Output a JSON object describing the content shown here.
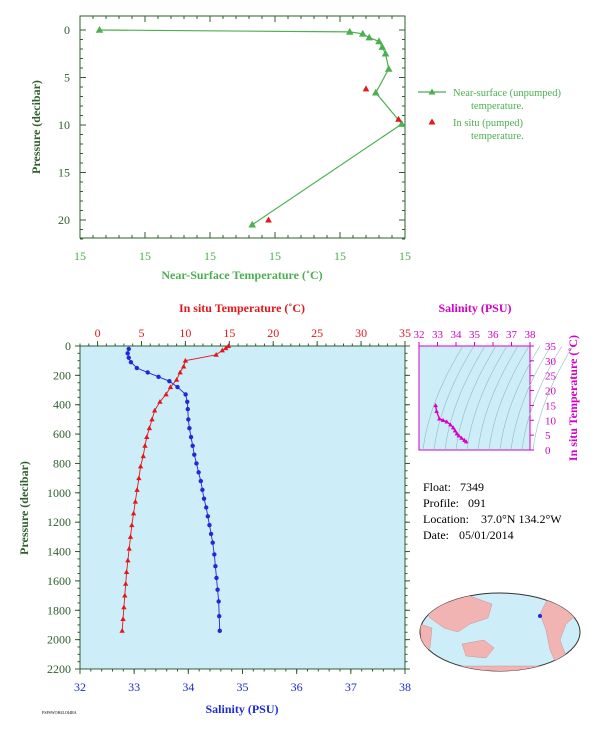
{
  "colors": {
    "green": "#4caf50",
    "axis_green": "#2f5e2f",
    "red": "#e3171b",
    "blue": "#1f2ad6",
    "magenta": "#d400c8",
    "plot_bg": "#cdeef8",
    "land": "#f2b3b3"
  },
  "meta": {
    "float_label": "Float:",
    "float_value": "7349",
    "profile_label": "Profile:",
    "profile_value": "091",
    "location_label": "Location:",
    "location_value": "37.0°N  134.2°W",
    "date_label": "Date:",
    "date_value": "05/01/2014",
    "footer_code": "FSPSWOH4LOI4RA"
  },
  "chart_data": [
    {
      "type": "line",
      "id": "near-surface",
      "xlabel": "Near-Surface Temperature (˚C)",
      "ylabel": "Pressure (decibar)",
      "x_tick_labels": [
        "15",
        "15",
        "15",
        "15",
        "15",
        "15"
      ],
      "y_ticks": [
        0,
        5,
        10,
        15,
        20
      ],
      "ylim": [
        0,
        22
      ],
      "y_inverted": true,
      "x_range_relative": [
        0,
        5
      ],
      "legend": {
        "placement": "right",
        "entries": [
          {
            "label_line1": "Near-surface (unpumped)",
            "label_line2": "temperature.",
            "color": "#4caf50",
            "marker": "line-triangle"
          },
          {
            "label_line1": "In situ (pumped)",
            "label_line2": "temperature.",
            "color": "#e3171b",
            "marker": "triangle"
          }
        ]
      },
      "series": [
        {
          "name": "Near-surface (unpumped) temperature.",
          "x_rel": [
            0.3,
            4.15,
            4.35,
            4.45,
            4.6,
            4.65,
            4.7,
            4.75,
            4.55,
            4.95,
            2.65
          ],
          "y": [
            0.0,
            0.2,
            0.4,
            0.8,
            1.2,
            1.8,
            2.5,
            4.1,
            6.6,
            9.9,
            20.5
          ]
        },
        {
          "name": "In situ (pumped) temperature.",
          "x_rel": [
            4.4,
            4.9,
            2.9
          ],
          "y": [
            6.2,
            9.4,
            20.0
          ]
        }
      ]
    },
    {
      "type": "line",
      "id": "profile",
      "ylabel": "Pressure (decibar)",
      "y_ticks": [
        0,
        200,
        400,
        600,
        800,
        1000,
        1200,
        1400,
        1600,
        1800,
        2000,
        2200
      ],
      "ylim": [
        0,
        2200
      ],
      "y_inverted": true,
      "top_axis": {
        "label": "In situ Temperature (˚C)",
        "ticks": [
          0,
          5,
          10,
          15,
          20,
          25,
          30,
          35
        ],
        "lim": [
          -2,
          35
        ]
      },
      "bottom_axis": {
        "label": "Salinity (PSU)",
        "ticks": [
          32,
          33,
          34,
          35,
          36,
          37,
          38
        ],
        "lim": [
          32,
          38
        ]
      },
      "series": [
        {
          "name": "In situ Temperature",
          "axis": "top",
          "x": [
            14.9,
            14.6,
            14.2,
            13.5,
            10.0,
            9.8,
            9.4,
            9.0,
            8.3,
            7.8,
            7.1,
            6.5,
            6.2,
            5.9,
            5.6,
            5.4,
            5.2,
            4.9,
            4.7,
            4.5,
            4.3,
            4.1,
            3.9,
            3.75,
            3.6,
            3.45,
            3.3,
            3.2,
            3.1,
            3.0,
            2.9,
            2.8
          ],
          "y": [
            0,
            15,
            30,
            60,
            100,
            140,
            180,
            230,
            280,
            330,
            380,
            440,
            500,
            560,
            620,
            680,
            750,
            820,
            900,
            980,
            1060,
            1140,
            1220,
            1300,
            1380,
            1460,
            1540,
            1620,
            1700,
            1780,
            1860,
            1940
          ]
        },
        {
          "name": "Salinity",
          "axis": "bottom",
          "x": [
            32.9,
            32.88,
            32.9,
            32.94,
            33.05,
            33.25,
            33.45,
            33.65,
            33.8,
            33.95,
            33.98,
            33.99,
            34.0,
            34.02,
            34.05,
            34.08,
            34.11,
            34.15,
            34.19,
            34.23,
            34.26,
            34.29,
            34.33,
            34.36,
            34.39,
            34.42,
            34.45,
            34.48,
            34.5,
            34.52,
            34.54,
            34.56,
            34.57,
            34.58
          ],
          "y": [
            20,
            50,
            80,
            110,
            150,
            180,
            210,
            240,
            280,
            330,
            380,
            430,
            500,
            560,
            620,
            680,
            740,
            800,
            860,
            920,
            980,
            1040,
            1100,
            1160,
            1220,
            1280,
            1340,
            1420,
            1500,
            1580,
            1660,
            1740,
            1840,
            1940
          ]
        }
      ]
    },
    {
      "type": "scatter",
      "id": "ts-diagram",
      "top_label": "Salinity (PSU)",
      "right_label": "In situ Temperature (˚C)",
      "x_ticks": [
        32,
        33,
        34,
        35,
        36,
        37,
        38
      ],
      "y_ticks": [
        0,
        5,
        10,
        15,
        20,
        25,
        30,
        35
      ],
      "xlim": [
        32,
        38
      ],
      "ylim": [
        0,
        35
      ],
      "series": [
        {
          "name": "T-S",
          "x": [
            32.9,
            32.95,
            33.1,
            33.3,
            33.5,
            33.7,
            33.85,
            33.95,
            34.05,
            34.15,
            34.3,
            34.45,
            34.55
          ],
          "y": [
            15.0,
            13.0,
            10.5,
            10.0,
            9.5,
            8.5,
            7.5,
            6.5,
            5.5,
            4.8,
            4.0,
            3.3,
            2.8
          ]
        }
      ]
    }
  ]
}
